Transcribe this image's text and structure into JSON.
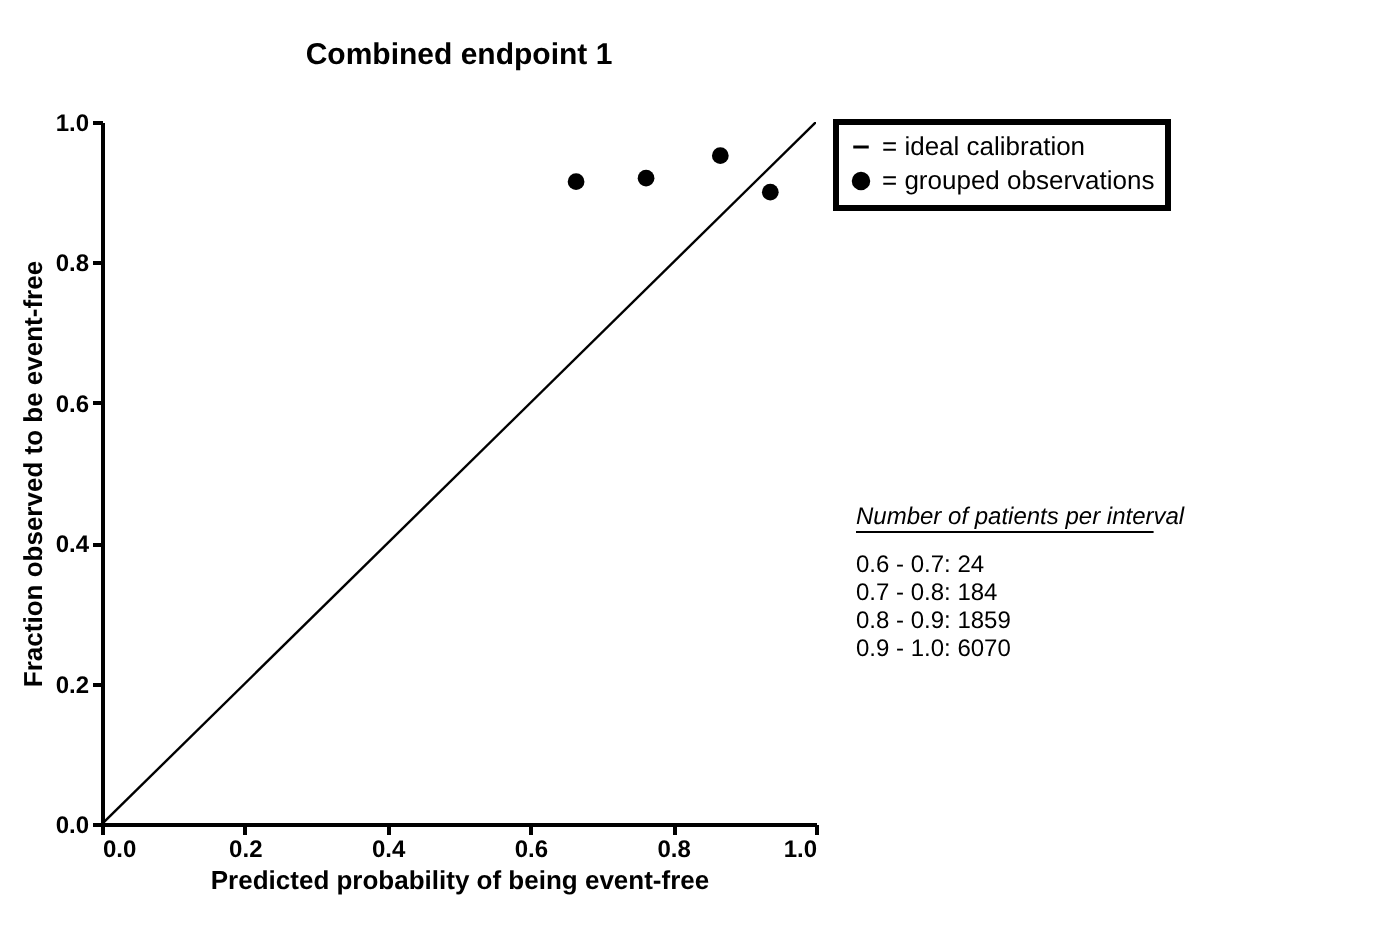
{
  "chart_data": {
    "type": "scatter",
    "title": "Combined endpoint 1",
    "xlabel": "Predicted probability of being event-free",
    "ylabel": "Fraction observed to be event-free",
    "series": [
      {
        "name": "= ideal calibration",
        "type": "line",
        "color": "#000000",
        "line_style": "solid",
        "x": [
          0.0,
          1.0
        ],
        "values": [
          0.0,
          1.0
        ]
      },
      {
        "name": "= grouped observations",
        "type": "scatter",
        "color": "#000000",
        "marker": "circle",
        "x": [
          0.664,
          0.762,
          0.866,
          0.936
        ],
        "values": [
          0.915,
          0.92,
          0.952,
          0.9
        ]
      }
    ],
    "xlim": [
      0.0,
      1.0
    ],
    "ylim": [
      0.0,
      1.0
    ],
    "xticks": [
      {
        "value": 0.0,
        "label": "0.0"
      },
      0.2,
      0.4,
      0.6,
      0.8,
      {
        "value": 1.0,
        "label": "1.0"
      }
    ],
    "yticks": [
      {
        "value": 0.0,
        "label": "0.0"
      },
      0.2,
      0.4,
      0.6,
      0.8,
      {
        "value": 1.0,
        "label": "1.0"
      }
    ],
    "grid": false,
    "legend": "right",
    "annotations": [
      "Number of patients per interval",
      "0.6 - 0.7: 24",
      "0.7 - 0.8: 184",
      "0.8 - 0.9: 1859",
      "0.9 - 1.0: 6070"
    ]
  }
}
